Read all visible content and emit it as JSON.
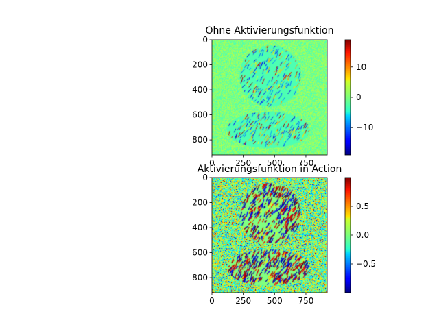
{
  "chart_data": [
    {
      "type": "heatmap",
      "title": "Ohne Aktivierungsfunktion",
      "xlabel": "",
      "ylabel": "",
      "xlim": [
        0,
        920
      ],
      "ylim": [
        920,
        0
      ],
      "xticks": [
        0,
        250,
        500,
        750
      ],
      "yticks": [
        0,
        200,
        400,
        600,
        800
      ],
      "xtick_labels": [
        "0",
        "250",
        "500",
        "750"
      ],
      "ytick_labels": [
        "0",
        "200",
        "400",
        "600",
        "800"
      ],
      "colormap": "jet",
      "vmin": -19,
      "vmax": 19,
      "colorbar_ticks": [
        -10,
        0,
        10
      ],
      "colorbar_tick_labels": [
        "−10",
        "0",
        "10"
      ],
      "background_value": 0,
      "regions": [
        {
          "shape": "circle",
          "center_x": 465,
          "center_y": 290,
          "radius": 245,
          "texture": "oriented noise",
          "value_range": [
            -19,
            19
          ]
        },
        {
          "shape": "ellipse",
          "center_x": 450,
          "center_y": 720,
          "radius_x": 330,
          "radius_y": 145,
          "texture": "oriented noise",
          "value_range": [
            -19,
            19
          ]
        }
      ]
    },
    {
      "type": "heatmap",
      "title": "Aktivierungsfunktion in Action",
      "xlabel": "",
      "ylabel": "",
      "xlim": [
        0,
        920
      ],
      "ylim": [
        920,
        0
      ],
      "xticks": [
        0,
        250,
        500,
        750
      ],
      "yticks": [
        0,
        200,
        400,
        600,
        800
      ],
      "xtick_labels": [
        "0",
        "250",
        "500",
        "750"
      ],
      "ytick_labels": [
        "0",
        "200",
        "400",
        "600",
        "800"
      ],
      "colormap": "jet",
      "vmin": -1,
      "vmax": 1,
      "colorbar_ticks": [
        -0.5,
        0.0,
        0.5
      ],
      "colorbar_tick_labels": [
        "−0.5",
        "0.0",
        "0.5"
      ],
      "background_value": 0,
      "regions": [
        {
          "shape": "circle",
          "center_x": 465,
          "center_y": 290,
          "radius": 245,
          "texture": "oriented noise",
          "value_range": [
            -1,
            1
          ]
        },
        {
          "shape": "ellipse",
          "center_x": 450,
          "center_y": 720,
          "radius_x": 330,
          "radius_y": 145,
          "texture": "oriented noise",
          "value_range": [
            -1,
            1
          ]
        }
      ]
    }
  ]
}
